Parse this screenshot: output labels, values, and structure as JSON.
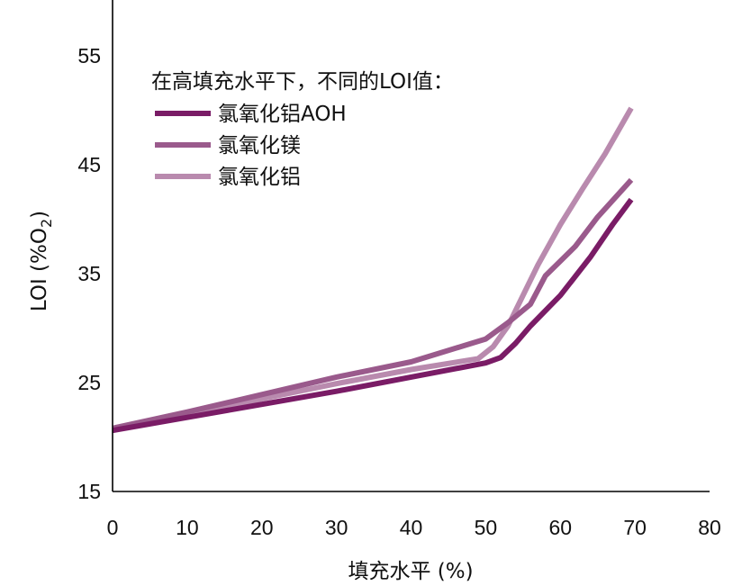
{
  "chart_data": {
    "type": "line",
    "xlabel": "填充水平 (%)",
    "ylabel": {
      "main": "LOI (%O",
      "sub": "2",
      "end": ")"
    },
    "xlim": [
      0,
      80
    ],
    "ylim": [
      15,
      60
    ],
    "x_ticks": [
      0,
      10,
      20,
      30,
      40,
      50,
      60,
      70,
      80
    ],
    "y_ticks": [
      15,
      25,
      35,
      45,
      55
    ],
    "grid": false,
    "legend": {
      "title": "在高填充水平下，不同的LOI值：",
      "placement": "top-left"
    },
    "series": [
      {
        "name": "氯氧化铝AOH",
        "color": "#7a1c66",
        "points": [
          [
            0,
            20.6
          ],
          [
            10,
            21.8
          ],
          [
            20,
            23.0
          ],
          [
            30,
            24.2
          ],
          [
            40,
            25.5
          ],
          [
            50,
            26.8
          ],
          [
            52,
            27.3
          ],
          [
            54,
            28.6
          ],
          [
            56,
            30.2
          ],
          [
            58,
            31.6
          ],
          [
            60,
            33.0
          ],
          [
            64,
            36.5
          ],
          [
            67,
            39.5
          ],
          [
            69.5,
            41.8
          ]
        ]
      },
      {
        "name": "氯氧化镁",
        "color": "#9a5a8c",
        "points": [
          [
            0,
            20.8
          ],
          [
            10,
            22.3
          ],
          [
            20,
            23.9
          ],
          [
            30,
            25.5
          ],
          [
            40,
            26.9
          ],
          [
            50,
            29.0
          ],
          [
            53,
            30.5
          ],
          [
            56,
            32.2
          ],
          [
            58,
            34.8
          ],
          [
            62,
            37.5
          ],
          [
            65,
            40.2
          ],
          [
            69.5,
            43.6
          ]
        ]
      },
      {
        "name": "氯氧化铝",
        "color": "#b98aae",
        "points": [
          [
            0,
            20.8
          ],
          [
            10,
            22.0
          ],
          [
            20,
            23.5
          ],
          [
            30,
            24.9
          ],
          [
            40,
            26.2
          ],
          [
            49,
            27.2
          ],
          [
            51,
            28.3
          ],
          [
            53,
            30.2
          ],
          [
            55,
            33.0
          ],
          [
            57,
            35.8
          ],
          [
            60,
            39.5
          ],
          [
            63,
            42.8
          ],
          [
            66,
            46.0
          ],
          [
            69.5,
            50.2
          ]
        ]
      }
    ]
  }
}
